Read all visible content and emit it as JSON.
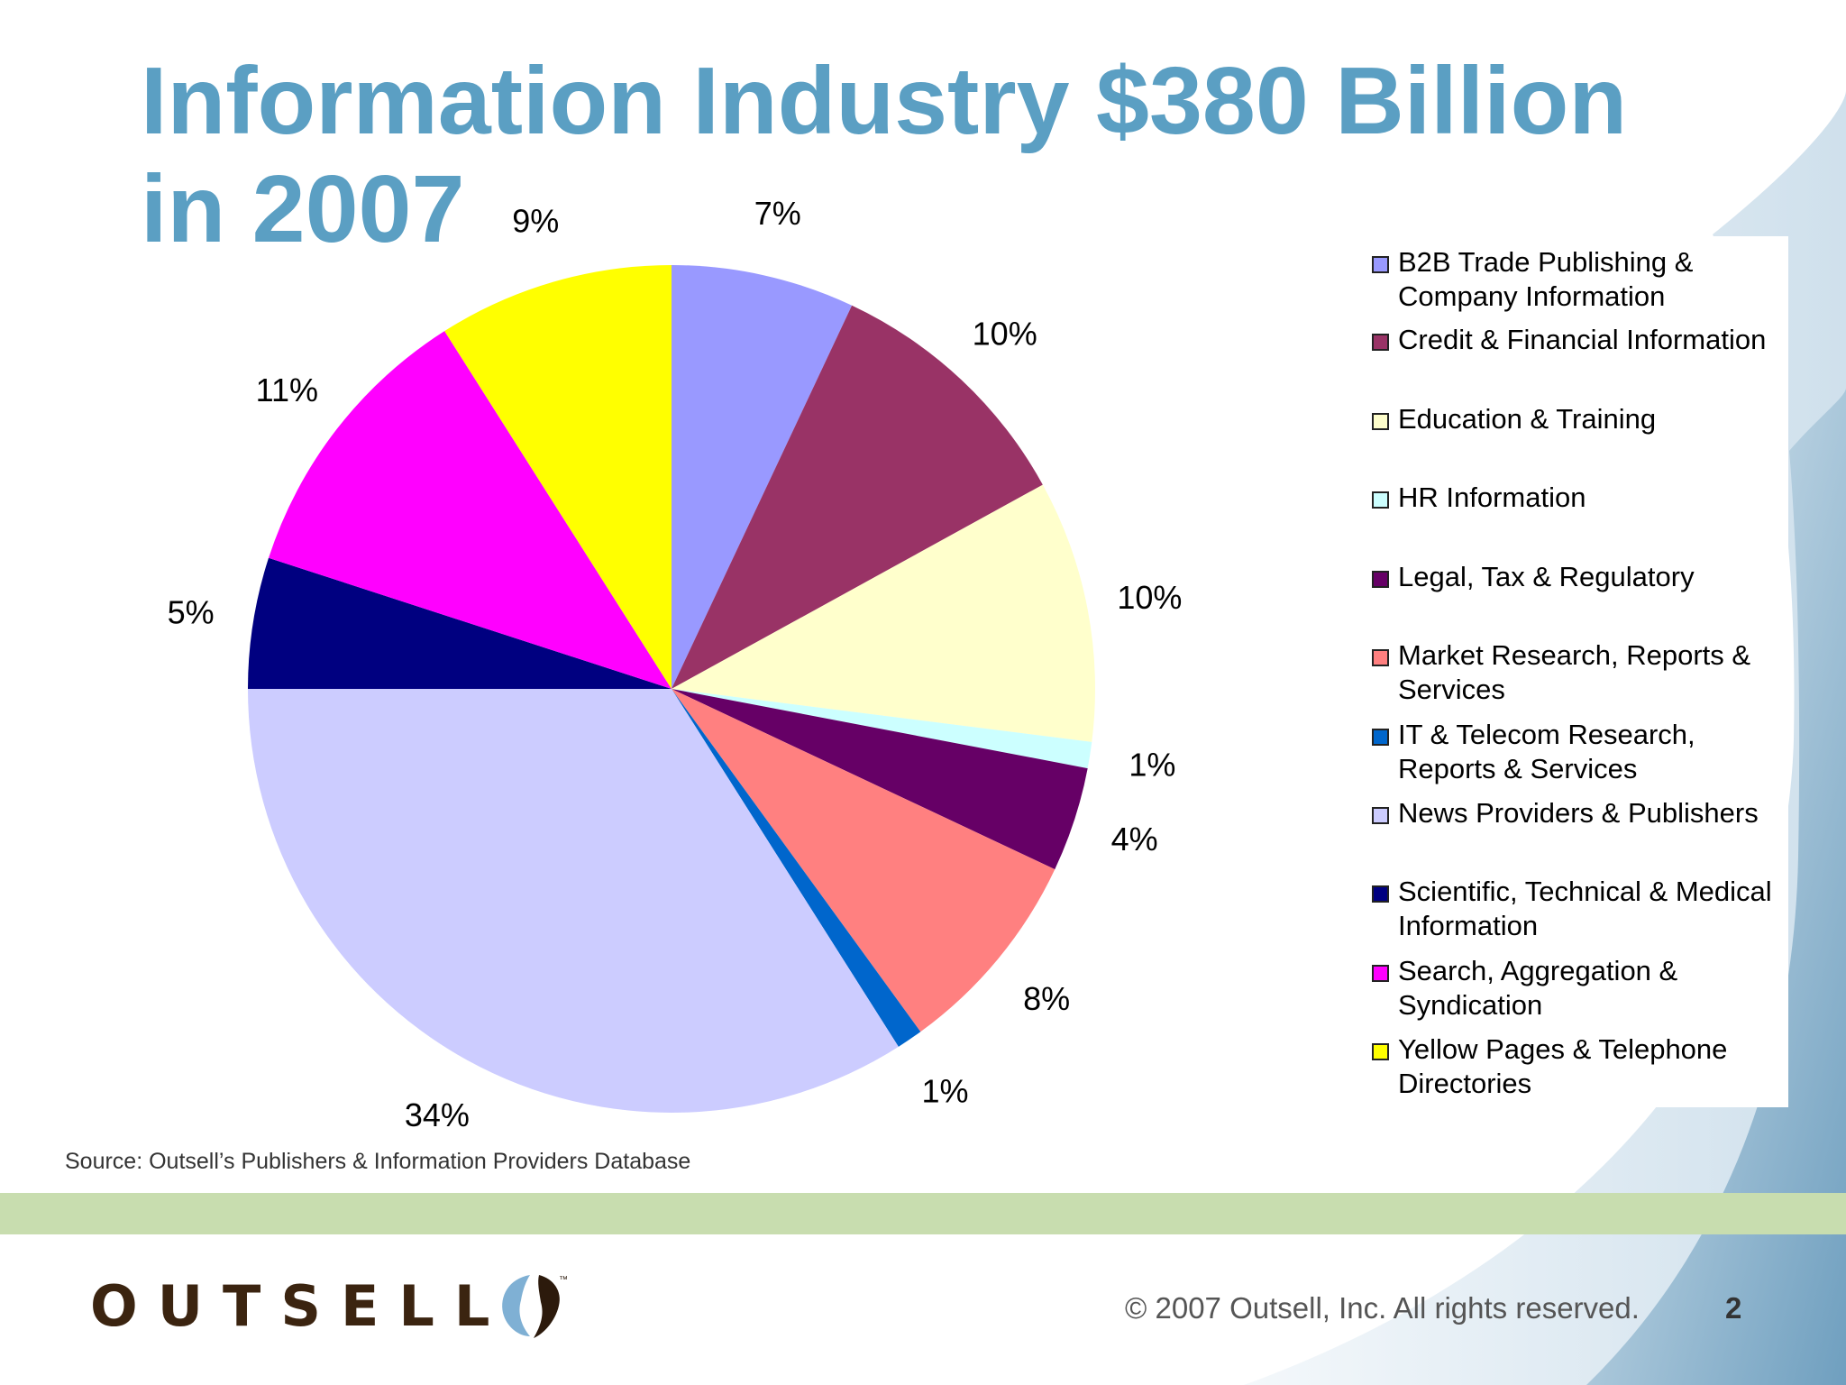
{
  "slide": {
    "title": "Information Industry $380 Billion in 2007",
    "source": "Source: Outsell’s Publishers & Information Providers Database",
    "copyright": "© 2007 Outsell, Inc. All rights reserved.",
    "page_number": "2",
    "logo_text": "OUTSELL"
  },
  "chart_data": {
    "type": "pie",
    "title": "Information Industry $380 Billion in 2007",
    "total_label": "$380 Billion",
    "legend_position": "right",
    "slices": [
      {
        "name": "B2B Trade Publishing & Company Information",
        "value": 7,
        "label": "7%",
        "color": "#9999ff"
      },
      {
        "name": "Credit & Financial Information",
        "value": 10,
        "label": "10%",
        "color": "#993366"
      },
      {
        "name": "Education & Training",
        "value": 10,
        "label": "10%",
        "color": "#ffffcc"
      },
      {
        "name": "HR Information",
        "value": 1,
        "label": "1%",
        "color": "#ccffff"
      },
      {
        "name": "Legal, Tax & Regulatory",
        "value": 4,
        "label": "4%",
        "color": "#660066"
      },
      {
        "name": "Market Research, Reports & Services",
        "value": 8,
        "label": "8%",
        "color": "#ff8080"
      },
      {
        "name": "IT & Telecom Research, Reports & Services",
        "value": 1,
        "label": "1%",
        "color": "#0066cc"
      },
      {
        "name": "News Providers & Publishers",
        "value": 34,
        "label": "34%",
        "color": "#ccccff"
      },
      {
        "name": "Scientific, Technical & Medical Information",
        "value": 5,
        "label": "5%",
        "color": "#000080"
      },
      {
        "name": "Search, Aggregation & Syndication",
        "value": 11,
        "label": "11%",
        "color": "#ff00ff"
      },
      {
        "name": "Yellow Pages & Telephone Directories",
        "value": 9,
        "label": "9%",
        "color": "#ffff00"
      }
    ]
  }
}
